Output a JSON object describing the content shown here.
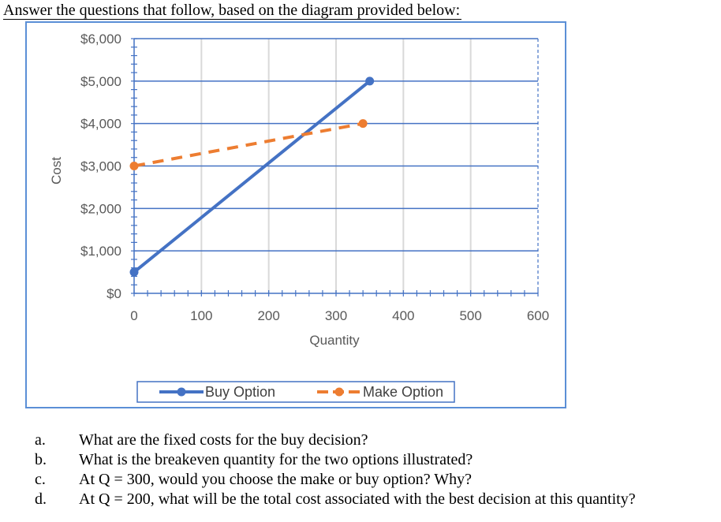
{
  "intro_text": "Answer the questions that follow, based on the diagram provided below:",
  "chart_data": {
    "type": "line",
    "xlabel": "Quantity",
    "ylabel": "Cost",
    "xlim": [
      0,
      600
    ],
    "ylim": [
      0,
      6000
    ],
    "x_ticks": [
      "0",
      "100",
      "200",
      "300",
      "400",
      "500",
      "600"
    ],
    "y_ticks": [
      "$0",
      "$1,000",
      "$2,000",
      "$3,000",
      "$4,000",
      "$5,000",
      "$6,000"
    ],
    "grid": true,
    "legend_position": "bottom",
    "series": [
      {
        "name": "Buy Option",
        "color": "#4472c4",
        "style": "solid",
        "x": [
          0,
          350
        ],
        "y": [
          500,
          5000
        ]
      },
      {
        "name": "Make Option",
        "color": "#ed7d31",
        "style": "dashed",
        "x": [
          0,
          340
        ],
        "y": [
          3000,
          4000
        ]
      }
    ]
  },
  "questions": [
    {
      "letter": "a.",
      "text": "What are the fixed costs for the buy decision?"
    },
    {
      "letter": "b.",
      "text": "What is the breakeven quantity for the two options illustrated?"
    },
    {
      "letter": "c.",
      "text": "At Q = 300, would you choose the make or buy option? Why?"
    },
    {
      "letter": "d.",
      "text": "At Q = 200, what will be the total cost associated with the best decision at this quantity?"
    }
  ]
}
